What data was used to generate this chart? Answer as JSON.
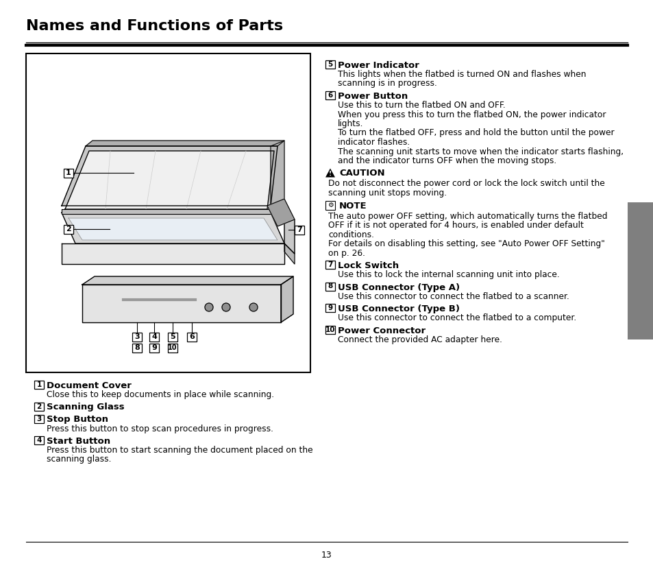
{
  "title": "Names and Functions of Parts",
  "bg_color": "#ffffff",
  "text_color": "#000000",
  "page_number": "13",
  "left_items": [
    {
      "num": "1",
      "heading": "Document Cover",
      "body": "Close this to keep documents in place while scanning."
    },
    {
      "num": "2",
      "heading": "Scanning Glass",
      "body": ""
    },
    {
      "num": "3",
      "heading": "Stop Button",
      "body": "Press this button to stop scan procedures in progress."
    },
    {
      "num": "4",
      "heading": "Start Button",
      "body": "Press this button to start scanning the document placed on the\nscanning glass."
    }
  ],
  "right_items": [
    {
      "num": "5",
      "heading": "Power Indicator",
      "body": "This lights when the flatbed is turned ON and flashes when\nscanning is in progress."
    },
    {
      "num": "6",
      "heading": "Power Button",
      "body": "Use this to turn the flatbed ON and OFF.\nWhen you press this to turn the flatbed ON, the power indicator\nlights.\nTo turn the flatbed OFF, press and hold the button until the power\nindicator flashes.\nThe scanning unit starts to move when the indicator starts flashing,\nand the indicator turns OFF when the moving stops."
    },
    {
      "num": "caution",
      "heading": "CAUTION",
      "body": "Do not disconnect the power cord or lock the lock switch until the\nscanning unit stops moving."
    },
    {
      "num": "note",
      "heading": "NOTE",
      "body": "The auto power OFF setting, which automatically turns the flatbed\nOFF if it is not operated for 4 hours, is enabled under default\nconditions.\nFor details on disabling this setting, see \"Auto Power OFF Setting\"\non p. 26."
    },
    {
      "num": "7",
      "heading": "Lock Switch",
      "body": "Use this to lock the internal scanning unit into place."
    },
    {
      "num": "8",
      "heading": "USB Connector (Type A)",
      "body": "Use this connector to connect the flatbed to a scanner."
    },
    {
      "num": "9",
      "heading": "USB Connector (Type B)",
      "body": "Use this connector to connect the flatbed to a computer."
    },
    {
      "num": "10",
      "heading": "Power Connector",
      "body": "Connect the provided AC adapter here."
    }
  ]
}
